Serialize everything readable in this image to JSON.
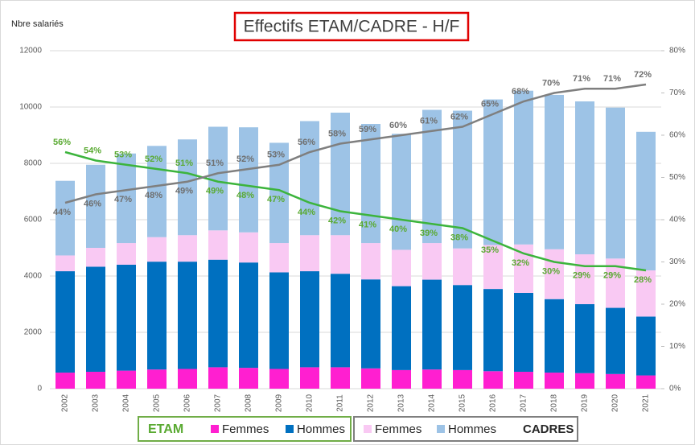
{
  "chart_data": {
    "type": "bar",
    "title": "Effectifs ETAM/CADRE - H/F",
    "y_label": "Nbre salariés",
    "categories": [
      "2002",
      "2003",
      "2004",
      "2005",
      "2006",
      "2007",
      "2008",
      "2009",
      "2010",
      "2011",
      "2012",
      "2013",
      "2014",
      "2015",
      "2016",
      "2017",
      "2018",
      "2019",
      "2020",
      "2021"
    ],
    "series": [
      {
        "name": "Femmes",
        "group": "ETAM",
        "color": "#ff1fd0",
        "values": [
          570,
          600,
          640,
          680,
          700,
          760,
          740,
          700,
          760,
          760,
          720,
          660,
          680,
          660,
          620,
          600,
          570,
          550,
          520,
          470
        ]
      },
      {
        "name": "Hommes",
        "group": "ETAM",
        "color": "#0070c0",
        "values": [
          3600,
          3730,
          3760,
          3830,
          3810,
          3820,
          3740,
          3430,
          3410,
          3320,
          3160,
          2980,
          3190,
          3020,
          2920,
          2800,
          2610,
          2450,
          2350,
          2090
        ]
      },
      {
        "name": "Femmes",
        "group": "CADRES",
        "color": "#f9c9f3",
        "values": [
          560,
          670,
          770,
          870,
          940,
          1040,
          1070,
          1040,
          1280,
          1370,
          1290,
          1290,
          1300,
          1300,
          1560,
          1720,
          1770,
          1770,
          1750,
          1640
        ]
      },
      {
        "name": "Hommes",
        "group": "CADRES",
        "color": "#9dc3e6",
        "values": [
          2650,
          2950,
          3180,
          3240,
          3400,
          3680,
          3730,
          3560,
          4050,
          4350,
          4230,
          4120,
          4730,
          4890,
          5170,
          5460,
          5480,
          5430,
          5360,
          4920
        ]
      }
    ],
    "lines": [
      {
        "axis": "y2",
        "color": "#3cb43c",
        "label_color": "#5aaa32",
        "values": [
          56,
          54,
          53,
          52,
          51,
          49,
          48,
          47,
          44,
          42,
          41,
          40,
          39,
          38,
          35,
          32,
          30,
          29,
          29,
          28
        ],
        "value_labels": [
          "56%",
          "54%",
          "53%",
          "52%",
          "51%",
          "49%",
          "48%",
          "47%",
          "44%",
          "42%",
          "41%",
          "40%",
          "39%",
          "38%",
          "35%",
          "32%",
          "30%",
          "29%",
          "29%",
          "28%"
        ]
      },
      {
        "axis": "y2",
        "color": "#7f7f7f",
        "label_color": "#6f6f6f",
        "values": [
          44,
          46,
          47,
          48,
          49,
          51,
          52,
          53,
          56,
          58,
          59,
          60,
          61,
          62,
          65,
          68,
          70,
          71,
          71,
          72
        ],
        "value_labels": [
          "44%",
          "46%",
          "47%",
          "48%",
          "49%",
          "51%",
          "52%",
          "53%",
          "56%",
          "58%",
          "59%",
          "60%",
          "61%",
          "62%",
          "65%",
          "68%",
          "70%",
          "71%",
          "71%",
          "72%"
        ]
      }
    ],
    "ylim": [
      0,
      12000
    ],
    "yticks": [
      0,
      2000,
      4000,
      6000,
      8000,
      10000,
      12000
    ],
    "y2lim": [
      0,
      80
    ],
    "y2ticks": [
      {
        "value": 0,
        "label": "0%"
      },
      {
        "value": 10,
        "label": "10%"
      },
      {
        "value": 20,
        "label": "20%"
      },
      {
        "value": 30,
        "label": "30%"
      },
      {
        "value": 40,
        "label": "40%"
      },
      {
        "value": 50,
        "label": "50%"
      },
      {
        "value": 60,
        "label": "60%"
      },
      {
        "value": 70,
        "label": "70%"
      },
      {
        "value": 80,
        "label": "80%"
      }
    ],
    "grid": true
  }
}
